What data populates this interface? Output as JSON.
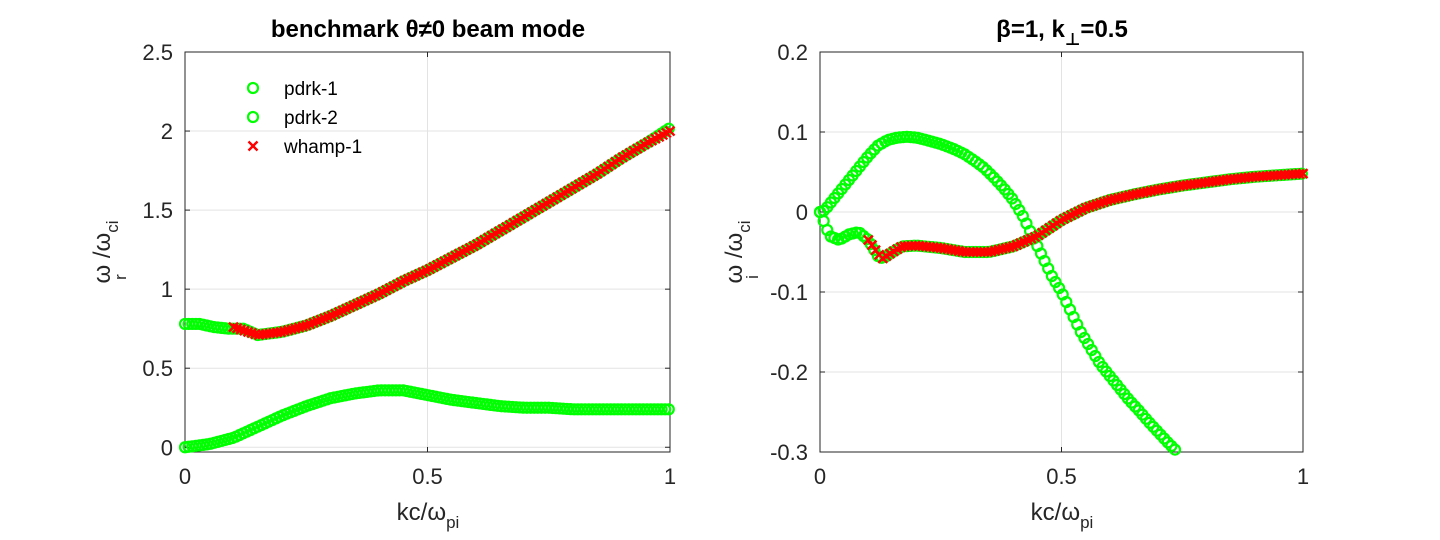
{
  "colors": {
    "pdrk": "#00ff00",
    "whamp": "#ff0000",
    "axis": "#262626",
    "grid": "#e3e3e3"
  },
  "chart_data": [
    {
      "type": "scatter",
      "title": "benchmark θ≠0 beam mode",
      "xlabel": {
        "main": "kc/ω",
        "sub": "pi"
      },
      "ylabel": {
        "main": "ω /ω",
        "sub1": "r",
        "sub2": "ci"
      },
      "xlim": [
        0,
        1
      ],
      "ylim": [
        -0.03,
        2.5
      ],
      "xticks": [
        0,
        0.5,
        1
      ],
      "xtick_labels": [
        "0",
        "0.5",
        "1"
      ],
      "yticks": [
        0,
        0.5,
        1,
        1.5,
        2,
        2.5
      ],
      "ytick_labels": [
        "0",
        "0.5",
        "1",
        "1.5",
        "2",
        "2.5"
      ],
      "grid": true,
      "legend": {
        "position": "top-left",
        "entries": [
          {
            "label": "pdrk-1",
            "marker": "circle",
            "color": "#00ff00"
          },
          {
            "label": "pdrk-2",
            "marker": "circle",
            "color": "#00ff00"
          },
          {
            "label": "whamp-1",
            "marker": "x",
            "color": "#ff0000"
          }
        ]
      },
      "series": [
        {
          "name": "pdrk-1",
          "marker": "circle",
          "color": "#00ff00",
          "x": [
            0,
            0.03,
            0.06,
            0.09,
            0.12,
            0.15,
            0.2,
            0.25,
            0.3,
            0.35,
            0.4,
            0.45,
            0.5,
            0.55,
            0.6,
            0.65,
            0.7,
            0.75,
            0.8,
            0.85,
            0.9,
            0.95,
            1.0
          ],
          "y": [
            0.78,
            0.78,
            0.76,
            0.75,
            0.75,
            0.71,
            0.73,
            0.77,
            0.83,
            0.9,
            0.97,
            1.05,
            1.12,
            1.2,
            1.28,
            1.37,
            1.46,
            1.55,
            1.64,
            1.73,
            1.83,
            1.92,
            2.02
          ]
        },
        {
          "name": "pdrk-2",
          "marker": "circle",
          "color": "#00ff00",
          "x": [
            0,
            0.05,
            0.1,
            0.15,
            0.2,
            0.25,
            0.3,
            0.35,
            0.4,
            0.45,
            0.5,
            0.55,
            0.6,
            0.65,
            0.7,
            0.75,
            0.8,
            0.85,
            0.9,
            0.95,
            1.0
          ],
          "y": [
            0.0,
            0.02,
            0.06,
            0.13,
            0.2,
            0.26,
            0.31,
            0.34,
            0.36,
            0.36,
            0.33,
            0.3,
            0.28,
            0.26,
            0.25,
            0.25,
            0.24,
            0.24,
            0.24,
            0.24,
            0.24
          ]
        },
        {
          "name": "whamp-1",
          "marker": "x",
          "color": "#ff0000",
          "x": [
            0.1,
            0.12,
            0.15,
            0.2,
            0.25,
            0.3,
            0.35,
            0.4,
            0.45,
            0.5,
            0.55,
            0.6,
            0.65,
            0.7,
            0.75,
            0.8,
            0.85,
            0.9,
            0.95,
            1.0
          ],
          "y": [
            0.76,
            0.74,
            0.71,
            0.73,
            0.77,
            0.83,
            0.9,
            0.97,
            1.05,
            1.12,
            1.2,
            1.28,
            1.37,
            1.46,
            1.55,
            1.64,
            1.73,
            1.83,
            1.92,
            2.0
          ]
        }
      ]
    },
    {
      "type": "scatter",
      "title": {
        "main": "β=1, k",
        "sub": "⊥",
        "tail": "=0.5"
      },
      "xlabel": {
        "main": "kc/ω",
        "sub": "pi"
      },
      "ylabel": {
        "main": "ω /ω",
        "sub1": "i",
        "sub2": "ci"
      },
      "xlim": [
        0,
        1
      ],
      "ylim": [
        -0.3,
        0.2
      ],
      "xticks": [
        0,
        0.5,
        1
      ],
      "xtick_labels": [
        "0",
        "0.5",
        "1"
      ],
      "yticks": [
        -0.3,
        -0.2,
        -0.1,
        0,
        0.1,
        0.2
      ],
      "ytick_labels": [
        "-0.3",
        "-0.2",
        "-0.1",
        "0",
        "0.1",
        "0.2"
      ],
      "grid": true,
      "series": [
        {
          "name": "pdrk-1",
          "marker": "circle",
          "color": "#00ff00",
          "x": [
            0,
            0.01,
            0.02,
            0.04,
            0.06,
            0.08,
            0.1,
            0.12,
            0.14,
            0.16,
            0.18,
            0.2,
            0.22,
            0.25,
            0.28,
            0.3,
            0.32,
            0.34,
            0.36,
            0.38,
            0.4,
            0.42,
            0.44,
            0.46,
            0.48,
            0.5,
            0.52,
            0.54,
            0.56,
            0.58,
            0.6,
            0.62,
            0.64,
            0.66,
            0.68,
            0.7,
            0.72,
            0.74
          ],
          "y": [
            0.0,
            0.002,
            0.01,
            0.025,
            0.04,
            0.055,
            0.07,
            0.083,
            0.09,
            0.093,
            0.094,
            0.093,
            0.09,
            0.085,
            0.078,
            0.072,
            0.064,
            0.055,
            0.043,
            0.03,
            0.015,
            -0.005,
            -0.03,
            -0.055,
            -0.08,
            -0.1,
            -0.125,
            -0.15,
            -0.17,
            -0.19,
            -0.205,
            -0.22,
            -0.235,
            -0.248,
            -0.262,
            -0.275,
            -0.288,
            -0.3
          ]
        },
        {
          "name": "pdrk-2",
          "marker": "circle",
          "color": "#00ff00",
          "x": [
            0,
            0.02,
            0.04,
            0.06,
            0.08,
            0.1,
            0.12,
            0.13,
            0.15,
            0.17,
            0.2,
            0.25,
            0.3,
            0.35,
            0.4,
            0.45,
            0.5,
            0.55,
            0.6,
            0.65,
            0.7,
            0.75,
            0.8,
            0.85,
            0.9,
            0.95,
            1.0
          ],
          "y": [
            0.0,
            -0.03,
            -0.035,
            -0.028,
            -0.025,
            -0.035,
            -0.055,
            -0.058,
            -0.05,
            -0.043,
            -0.042,
            -0.045,
            -0.05,
            -0.05,
            -0.043,
            -0.03,
            -0.01,
            0.005,
            0.015,
            0.022,
            0.028,
            0.033,
            0.037,
            0.041,
            0.044,
            0.046,
            0.048
          ]
        },
        {
          "name": "whamp-1",
          "marker": "x",
          "color": "#ff0000",
          "x": [
            0.1,
            0.12,
            0.13,
            0.15,
            0.17,
            0.2,
            0.25,
            0.3,
            0.35,
            0.4,
            0.45,
            0.5,
            0.55,
            0.6,
            0.65,
            0.7,
            0.75,
            0.8,
            0.85,
            0.9,
            0.95,
            1.0
          ],
          "y": [
            -0.035,
            -0.052,
            -0.058,
            -0.05,
            -0.043,
            -0.042,
            -0.045,
            -0.05,
            -0.05,
            -0.043,
            -0.03,
            -0.01,
            0.005,
            0.015,
            0.022,
            0.028,
            0.033,
            0.037,
            0.041,
            0.044,
            0.046,
            0.048
          ]
        }
      ]
    }
  ]
}
